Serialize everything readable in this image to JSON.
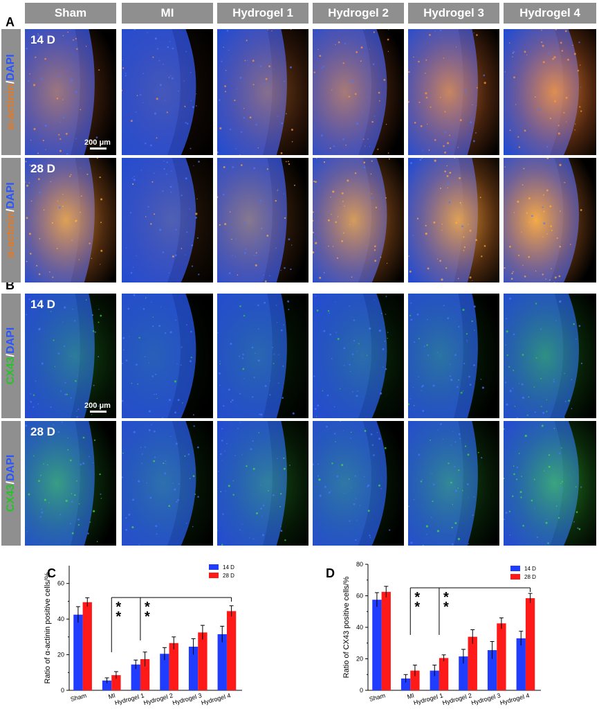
{
  "panels": {
    "A": "A",
    "B": "B",
    "C": "C",
    "D": "D"
  },
  "columns": [
    "Sham",
    "MI",
    "Hydrogel 1",
    "Hydrogel 2",
    "Hydrogel 3",
    "Hydrogel 4"
  ],
  "rows": [
    {
      "day": "14 D",
      "stain_a": "α-actinin",
      "sep": "/",
      "stain_b": "DAPI",
      "color_a": "#e07a2a",
      "color_b": "#2a55ff",
      "scalebar": "200 μm"
    },
    {
      "day": "28 D",
      "stain_a": "α-actinin",
      "sep": "/",
      "stain_b": "DAPI",
      "color_a": "#e07a2a",
      "color_b": "#2a55ff",
      "scalebar": ""
    },
    {
      "day": "14 D",
      "stain_a": "CX43",
      "sep": "/",
      "stain_b": "DAPI",
      "color_a": "#27c22a",
      "color_b": "#2a55ff",
      "scalebar": "200 μm"
    },
    {
      "day": "28 D",
      "stain_a": "CX43",
      "sep": "/",
      "stain_b": "DAPI",
      "color_a": "#27c22a",
      "color_b": "#2a55ff",
      "scalebar": ""
    }
  ],
  "significance": "**",
  "chart_data": [
    {
      "type": "bar",
      "panel": "C",
      "categories": [
        "Sham",
        "MI",
        "Hydrogel 1",
        "Hydrogel 2",
        "Hydrogel 3",
        "Hydrogel 4"
      ],
      "series": [
        {
          "name": "14 D",
          "color": "#1f3cff",
          "values": [
            42.5,
            5.5,
            14.5,
            20.5,
            24.5,
            31.5
          ],
          "errors": [
            4.5,
            1.5,
            2.5,
            3.5,
            4.5,
            4.5
          ]
        },
        {
          "name": "28 D",
          "color": "#ff1a1a",
          "values": [
            49.5,
            8.5,
            17.5,
            26.5,
            32.5,
            44.5
          ],
          "errors": [
            2.5,
            2.0,
            4.0,
            3.5,
            4.0,
            3.0
          ]
        }
      ],
      "ylabel": "Ratio of α-actinin positive cells/%",
      "ylim": [
        0,
        70
      ],
      "yticks": [
        0,
        20,
        40,
        60
      ],
      "legend": "top-right",
      "annotations": [
        "**",
        "**"
      ]
    },
    {
      "type": "bar",
      "panel": "D",
      "categories": [
        "Sham",
        "MI",
        "Hydrogel 1",
        "Hydrogel 2",
        "Hydrogel 3",
        "Hydrogel 4"
      ],
      "series": [
        {
          "name": "14 D",
          "color": "#1f3cff",
          "values": [
            57.5,
            7.5,
            12.5,
            21.5,
            25.5,
            33.0
          ],
          "errors": [
            4.5,
            2.5,
            3.5,
            4.5,
            5.5,
            4.5
          ]
        },
        {
          "name": "28 D",
          "color": "#ff1a1a",
          "values": [
            62.5,
            12.5,
            20.5,
            34.0,
            42.5,
            58.5
          ],
          "errors": [
            3.5,
            3.5,
            2.0,
            4.5,
            3.5,
            3.0
          ]
        }
      ],
      "ylabel": "Ratio of CX43 positive cells/%",
      "ylim": [
        0,
        80
      ],
      "yticks": [
        0,
        20,
        40,
        60,
        80
      ],
      "legend": "top-right",
      "annotations": [
        "**",
        "**"
      ]
    }
  ]
}
